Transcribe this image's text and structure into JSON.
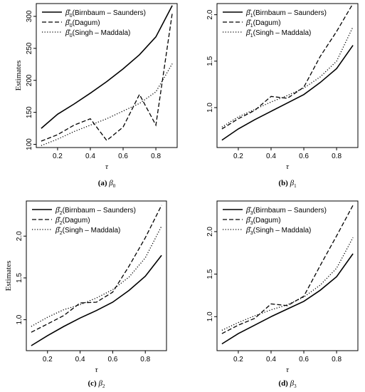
{
  "chart_data": [
    {
      "type": "line",
      "caption_letter": "(a)",
      "caption_symbol": "β",
      "caption_sub": "0",
      "xlabel": "τ",
      "ylabel": "Estimates",
      "xlim": [
        0.07,
        0.93
      ],
      "ylim": [
        95,
        320
      ],
      "xticks": [
        "0.2",
        "0.4",
        "0.6",
        "0.8"
      ],
      "yticks": [
        "100",
        "150",
        "200",
        "250",
        "300"
      ],
      "legend_position": "top-left",
      "estimator_symbol": "β",
      "estimator_sub": "0",
      "x": [
        0.1,
        0.2,
        0.3,
        0.4,
        0.5,
        0.6,
        0.7,
        0.8,
        0.9
      ],
      "series": [
        {
          "name": "Birnbaum – Saunders",
          "style": "solid",
          "values": [
            125,
            147,
            163,
            180,
            198,
            218,
            240,
            268,
            317
          ]
        },
        {
          "name": "Dagum",
          "style": "dashed",
          "values": [
            105,
            115,
            130,
            140,
            106,
            127,
            178,
            130,
            305
          ]
        },
        {
          "name": "Singh – Maddala",
          "style": "dotted",
          "values": [
            98,
            108,
            120,
            130,
            140,
            152,
            164,
            182,
            226
          ]
        }
      ]
    },
    {
      "type": "line",
      "caption_letter": "(b)",
      "caption_symbol": "β",
      "caption_sub": "1",
      "xlabel": "τ",
      "ylabel": "",
      "xlim": [
        0.07,
        0.93
      ],
      "ylim": [
        0.57,
        2.12
      ],
      "xticks": [
        "0.2",
        "0.4",
        "0.6",
        "0.8"
      ],
      "yticks": [
        "1.0",
        "1.5",
        "2.0"
      ],
      "legend_position": "top-left",
      "estimator_symbol": "β",
      "estimator_sub": "1",
      "x": [
        0.1,
        0.2,
        0.3,
        0.4,
        0.5,
        0.6,
        0.7,
        0.8,
        0.9
      ],
      "series": [
        {
          "name": "Birnbaum – Saunders",
          "style": "solid",
          "values": [
            0.65,
            0.77,
            0.87,
            0.96,
            1.05,
            1.14,
            1.27,
            1.42,
            1.67
          ]
        },
        {
          "name": "Dagum",
          "style": "dashed",
          "values": [
            0.77,
            0.88,
            0.97,
            1.12,
            1.1,
            1.22,
            1.55,
            1.82,
            2.12
          ]
        },
        {
          "name": "Singh – Maddala",
          "style": "dotted",
          "values": [
            0.79,
            0.9,
            0.98,
            1.06,
            1.13,
            1.21,
            1.33,
            1.5,
            1.87
          ]
        }
      ]
    },
    {
      "type": "line",
      "caption_letter": "(c)",
      "caption_symbol": "β",
      "caption_sub": "2",
      "xlabel": "τ",
      "ylabel": "Estimates",
      "xlim": [
        0.07,
        0.93
      ],
      "ylim": [
        0.63,
        2.42
      ],
      "xticks": [
        "0.2",
        "0.4",
        "0.6",
        "0.8"
      ],
      "yticks": [
        "1.0",
        "1.5",
        "2.0"
      ],
      "legend_position": "top-left",
      "estimator_symbol": "β",
      "estimator_sub": "2",
      "x": [
        0.1,
        0.2,
        0.3,
        0.4,
        0.5,
        0.6,
        0.7,
        0.8,
        0.9
      ],
      "series": [
        {
          "name": "Birnbaum – Saunders",
          "style": "solid",
          "values": [
            0.69,
            0.81,
            0.92,
            1.02,
            1.11,
            1.21,
            1.35,
            1.52,
            1.77
          ]
        },
        {
          "name": "Dagum",
          "style": "dashed",
          "values": [
            0.85,
            0.95,
            1.05,
            1.2,
            1.21,
            1.33,
            1.64,
            1.98,
            2.37
          ]
        },
        {
          "name": "Singh – Maddala",
          "style": "dotted",
          "values": [
            0.92,
            1.03,
            1.12,
            1.18,
            1.26,
            1.36,
            1.51,
            1.74,
            2.12
          ]
        }
      ]
    },
    {
      "type": "line",
      "caption_letter": "(d)",
      "caption_symbol": "β",
      "caption_sub": "3",
      "xlabel": "τ",
      "ylabel": "",
      "xlim": [
        0.07,
        0.93
      ],
      "ylim": [
        0.6,
        2.36
      ],
      "xticks": [
        "0.2",
        "0.4",
        "0.6",
        "0.8"
      ],
      "yticks": [
        "1.0",
        "1.5",
        "2.0"
      ],
      "legend_position": "top-left",
      "estimator_symbol": "β",
      "estimator_sub": "3",
      "x": [
        0.1,
        0.2,
        0.3,
        0.4,
        0.5,
        0.6,
        0.7,
        0.8,
        0.9
      ],
      "series": [
        {
          "name": "Birnbaum – Saunders",
          "style": "solid",
          "values": [
            0.68,
            0.8,
            0.9,
            1.0,
            1.09,
            1.18,
            1.31,
            1.47,
            1.74
          ]
        },
        {
          "name": "Dagum",
          "style": "dashed",
          "values": [
            0.8,
            0.9,
            0.98,
            1.15,
            1.13,
            1.24,
            1.6,
            1.95,
            2.31
          ]
        },
        {
          "name": "Singh – Maddala",
          "style": "dotted",
          "values": [
            0.84,
            0.93,
            1.01,
            1.08,
            1.14,
            1.23,
            1.37,
            1.57,
            1.93
          ]
        }
      ]
    }
  ]
}
